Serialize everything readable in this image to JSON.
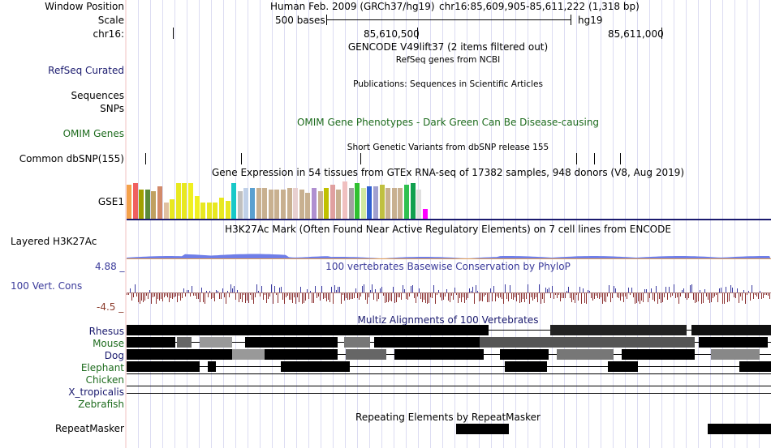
{
  "header": {
    "window_position_label": "Window Position",
    "scale_label": "Scale",
    "chrom_label": "chr16:",
    "assembly_text": "Human Feb. 2009 (GRCh37/hg19)",
    "position_text": "chr16:85,609,905-85,611,222 (1,318 bp)",
    "scale_text": "500 bases",
    "db_text": "hg19",
    "tick_1": "85,610,500",
    "tick_2": "85,611,000"
  },
  "tracks": {
    "gencode_title": "GENCODE V49lift37 (2 items filtered out)",
    "refseq_label": "RefSeq Curated",
    "refseq_title": "RefSeq genes from NCBI",
    "pubs_title": "Publications: Sequences in Scientific Articles",
    "sequences_label": "Sequences",
    "snps_label": "SNPs",
    "omim_label": "OMIM Genes",
    "omim_title": "OMIM Gene Phenotypes - Dark Green Can Be Disease-causing",
    "dbsnp_title": "Short Genetic Variants from dbSNP release 155",
    "dbsnp_label": "Common dbSNP(155)",
    "gtex_title": "Gene Expression in 54 tissues from GTEx RNA-seq of 17382 samples, 948 donors (V8, Aug 2019)",
    "gtex_label": "GSE1",
    "h3k27ac_label": "Layered H3K27Ac",
    "h3k27ac_title": "H3K27Ac Mark (Often Found Near Active Regulatory Elements) on 7 cell lines from ENCODE",
    "phylop_max": "4.88 _",
    "phylop_title": "100 vertebrates Basewise Conservation by PhyloP",
    "phylop_label": "100 Vert. Cons",
    "phylop_min": "-4.5 _",
    "multiz_title": "Multiz Alignments of 100 Vertebrates",
    "species": [
      "Rhesus",
      "Mouse",
      "Dog",
      "Elephant",
      "Chicken",
      "X_tropicalis",
      "Zebrafish"
    ],
    "repeat_title": "Repeating Elements by RepeatMasker",
    "repeat_label": "RepeatMasker"
  },
  "colors": {
    "navy": "#1a1a6e",
    "green": "#1d6b1d",
    "phylop_pos": "#3a3aa0",
    "phylop_neg": "#8a2e2e",
    "h3k27ac": "#6f7ee8"
  },
  "gtex_colors": [
    "#f4a14a",
    "#f06060",
    "#a0a000",
    "#5b8a3a",
    "#c0a060",
    "#d28a6a",
    "#e0c0a0",
    "#e8e820",
    "#e8e820",
    "#e8e820",
    "#f0f020",
    "#f0f020",
    "#e8e820",
    "#e8e820",
    "#e8e820",
    "#e8e820",
    "#e8e820",
    "#18c8c8",
    "#c0c0c0",
    "#c0d0e8",
    "#5aa0d0",
    "#c8b090",
    "#c8b090",
    "#c8b090",
    "#c8b090",
    "#c8b090",
    "#c8b090",
    "#e8d0d0",
    "#c8b090",
    "#c8b090",
    "#b090d0",
    "#c8b090",
    "#c0c000",
    "#e0a0a0",
    "#c8b090",
    "#f0c0c0",
    "#a0a0a0",
    "#30c030",
    "#d0e8a0",
    "#3060d0",
    "#a0a0d0",
    "#c0c040",
    "#c8b090",
    "#c8b090",
    "#c8b090",
    "#30c050",
    "#10a050",
    "#e0e0e0",
    "#ff00ff"
  ],
  "gtex_values": [
    42,
    44,
    36,
    36,
    34,
    40,
    20,
    24,
    44,
    44,
    44,
    28,
    20,
    20,
    20,
    26,
    22,
    44,
    34,
    38,
    38,
    38,
    38,
    36,
    36,
    36,
    38,
    38,
    36,
    32,
    38,
    34,
    38,
    42,
    36,
    46,
    38,
    44,
    38,
    40,
    40,
    42,
    38,
    38,
    38,
    42,
    44,
    36,
    12
  ]
}
